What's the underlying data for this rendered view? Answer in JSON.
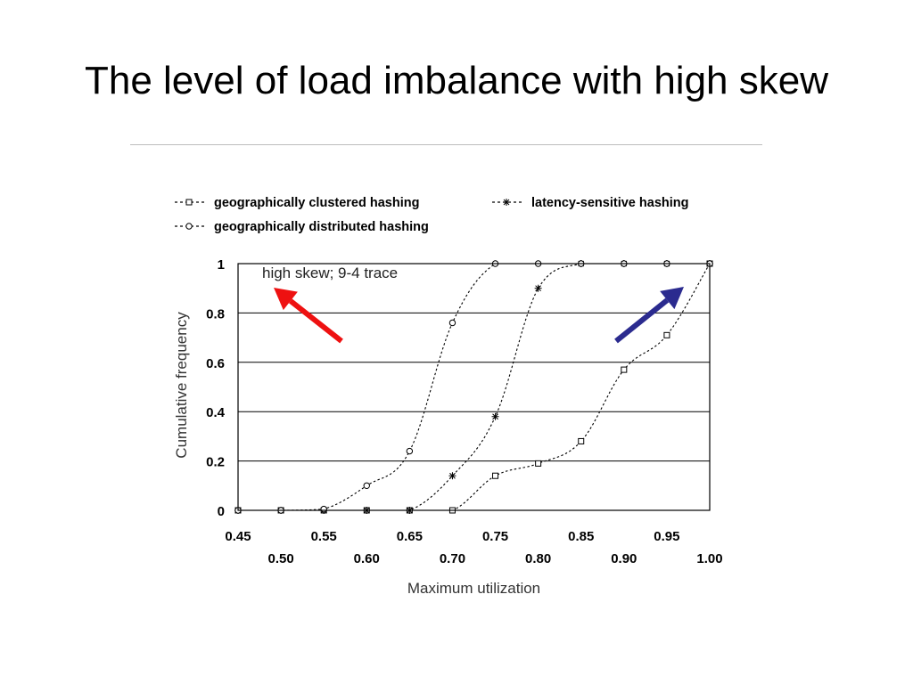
{
  "slide": {
    "title": "The level of load imbalance with high skew"
  },
  "chart_data": {
    "type": "line",
    "title": "",
    "annotation": "high skew; 9-4 trace",
    "xlabel": "Maximum utilization",
    "ylabel": "Cumulative frequency",
    "xlim": [
      0.45,
      1.0
    ],
    "ylim": [
      0,
      1
    ],
    "x_ticks_row1": [
      "0.45",
      "0.55",
      "0.65",
      "0.75",
      "0.85",
      "0.95"
    ],
    "x_ticks_row2": [
      "0.50",
      "0.60",
      "0.70",
      "0.80",
      "0.90",
      "1.00"
    ],
    "y_ticks": [
      "0",
      "0.2",
      "0.4",
      "0.6",
      "0.8",
      "1"
    ],
    "grid": "horizontal",
    "legend_position": "top",
    "series": [
      {
        "name": "geographically clustered hashing",
        "marker": "square",
        "points": [
          [
            0.45,
            0
          ],
          [
            0.5,
            0
          ],
          [
            0.55,
            0
          ],
          [
            0.6,
            0
          ],
          [
            0.65,
            0
          ],
          [
            0.7,
            0
          ],
          [
            0.75,
            0.14
          ],
          [
            0.8,
            0.19
          ],
          [
            0.85,
            0.28
          ],
          [
            0.9,
            0.57
          ],
          [
            0.95,
            0.71
          ],
          [
            1.0,
            1.0
          ]
        ]
      },
      {
        "name": "latency-sensitive hashing",
        "marker": "star",
        "points": [
          [
            0.45,
            0
          ],
          [
            0.5,
            0
          ],
          [
            0.55,
            0
          ],
          [
            0.6,
            0
          ],
          [
            0.65,
            0
          ],
          [
            0.7,
            0.14
          ],
          [
            0.75,
            0.38
          ],
          [
            0.8,
            0.9
          ],
          [
            0.85,
            1.0
          ],
          [
            0.9,
            1.0
          ],
          [
            0.95,
            1.0
          ],
          [
            1.0,
            1.0
          ]
        ]
      },
      {
        "name": "geographically distributed hashing",
        "marker": "circle",
        "points": [
          [
            0.45,
            0
          ],
          [
            0.5,
            0
          ],
          [
            0.55,
            0.005
          ],
          [
            0.6,
            0.1
          ],
          [
            0.65,
            0.24
          ],
          [
            0.7,
            0.76
          ],
          [
            0.75,
            1.0
          ],
          [
            0.8,
            1.0
          ],
          [
            0.85,
            1.0
          ],
          [
            0.9,
            1.0
          ],
          [
            0.95,
            1.0
          ],
          [
            1.0,
            1.0
          ]
        ]
      }
    ],
    "arrows": [
      {
        "name": "red-arrow",
        "color": "#ee1111"
      },
      {
        "name": "blue-arrow",
        "color": "#2b2b8f"
      }
    ]
  }
}
